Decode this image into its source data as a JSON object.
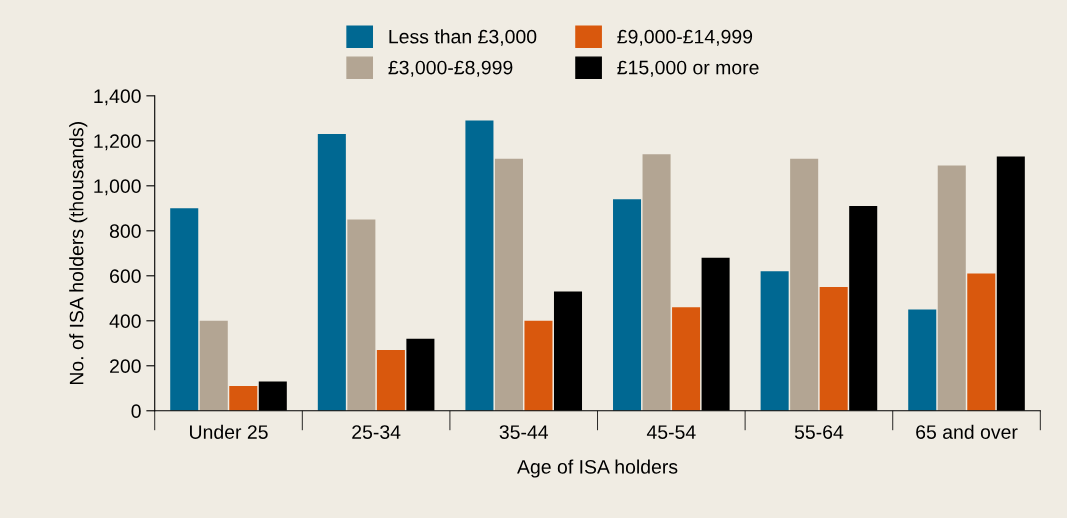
{
  "chart_data": {
    "type": "bar",
    "xlabel": "Age of ISA holders",
    "ylabel": "No. of ISA holders (thousands)",
    "categories": [
      "Under 25",
      "25-34",
      "35-44",
      "45-54",
      "55-64",
      "65 and over"
    ],
    "series": [
      {
        "name": "Less than £3,000",
        "color": "#006892",
        "values": [
          900,
          1230,
          1290,
          940,
          620,
          450
        ]
      },
      {
        "name": "£3,000-£8,999",
        "color": "#b3a593",
        "values": [
          400,
          850,
          1120,
          1140,
          1120,
          1090
        ]
      },
      {
        "name": "£9,000-£14,999",
        "color": "#d9580d",
        "values": [
          110,
          270,
          400,
          460,
          550,
          610
        ]
      },
      {
        "name": "£15,000 or more",
        "color": "#000000",
        "values": [
          130,
          320,
          530,
          680,
          910,
          1130
        ]
      }
    ],
    "ylim": [
      0,
      1400
    ],
    "yticks": [
      {
        "value": 0,
        "label": "0"
      },
      {
        "value": 200,
        "label": "200"
      },
      {
        "value": 400,
        "label": "400"
      },
      {
        "value": 600,
        "label": "600"
      },
      {
        "value": 800,
        "label": "800"
      },
      {
        "value": 1000,
        "label": "1,000"
      },
      {
        "value": 1200,
        "label": "1,200"
      },
      {
        "value": 1400,
        "label": "1,400"
      }
    ],
    "grid": false,
    "legend": "top"
  }
}
